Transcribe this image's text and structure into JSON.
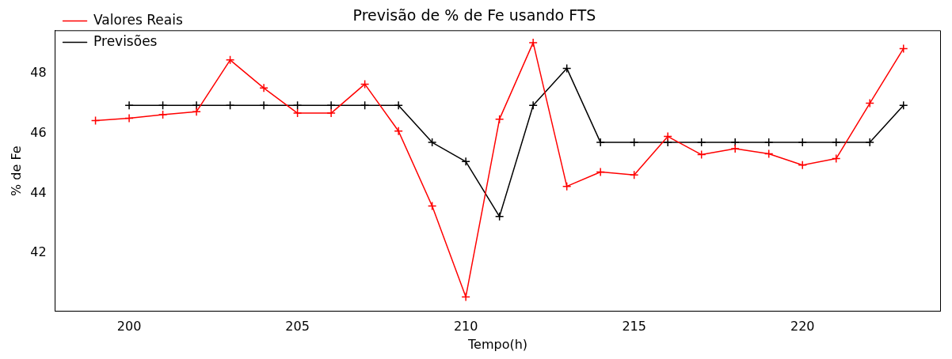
{
  "chart_data": {
    "type": "line",
    "title": "Previsão de % de Fe usando FTS",
    "xlabel": "Tempo(h)",
    "ylabel": "% de Fe",
    "xlim": [
      197.8,
      224.1
    ],
    "xticks": [
      200,
      205,
      210,
      215,
      220
    ],
    "ylim": [
      40.05,
      49.44
    ],
    "yticks": [
      42,
      44,
      46,
      48
    ],
    "grid": false,
    "legend": "top left",
    "marker": "cross",
    "line_style": "solid",
    "series": [
      {
        "name": "Valores Reais",
        "color": "#ff0000",
        "x": [
          199,
          200,
          201,
          202,
          203,
          204,
          205,
          206,
          207,
          208,
          209,
          210,
          211,
          212,
          213,
          214,
          215,
          216,
          217,
          218,
          219,
          220,
          221,
          222,
          223
        ],
        "values": [
          46.43,
          46.51,
          46.63,
          46.73,
          48.46,
          47.52,
          46.68,
          46.68,
          47.65,
          46.08,
          43.57,
          40.53,
          46.48,
          49.04,
          44.23,
          44.71,
          44.61,
          45.9,
          45.29,
          45.49,
          45.32,
          44.94,
          45.16,
          47.01,
          48.84
        ]
      },
      {
        "name": "Previsões",
        "color": "#000000",
        "x": [
          200,
          201,
          202,
          203,
          204,
          205,
          206,
          207,
          208,
          209,
          210,
          211,
          212,
          213,
          214,
          215,
          216,
          217,
          218,
          219,
          220,
          221,
          222,
          223
        ],
        "values": [
          46.94,
          46.94,
          46.94,
          46.94,
          46.94,
          46.94,
          46.94,
          46.94,
          46.94,
          45.7,
          45.06,
          43.22,
          46.94,
          48.18,
          45.7,
          45.7,
          45.7,
          45.7,
          45.7,
          45.7,
          45.7,
          45.7,
          45.7,
          46.94
        ]
      }
    ]
  }
}
